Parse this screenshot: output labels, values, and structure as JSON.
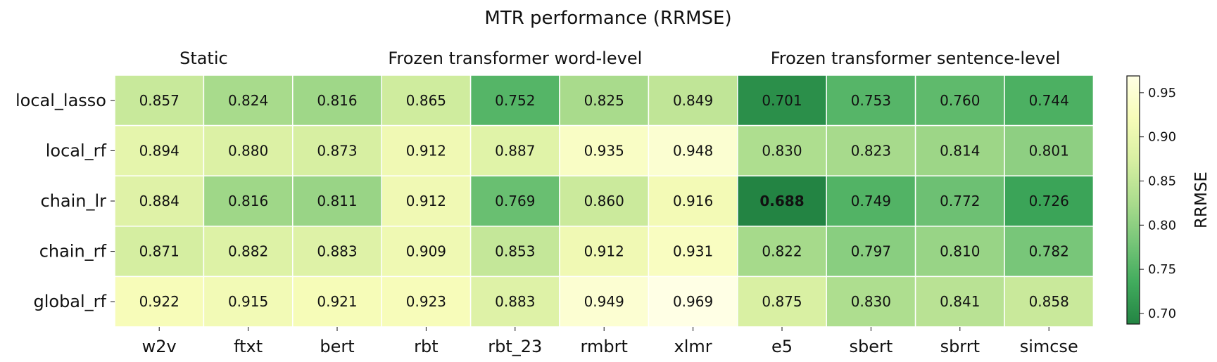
{
  "chart_data": {
    "type": "heatmap",
    "title": "MTR performance (RRMSE)",
    "column_groups": [
      {
        "label": "Static",
        "columns": [
          "w2v",
          "ftxt"
        ]
      },
      {
        "label": "Frozen transformer word-level",
        "columns": [
          "bert",
          "rbt",
          "rbt_23",
          "rmbrt",
          "xlmr"
        ]
      },
      {
        "label": "Frozen transformer sentence-level",
        "columns": [
          "e5",
          "sbert",
          "sbrrt",
          "simcse"
        ]
      }
    ],
    "columns": [
      "w2v",
      "ftxt",
      "bert",
      "rbt",
      "rbt_23",
      "rmbrt",
      "xlmr",
      "e5",
      "sbert",
      "sbrrt",
      "simcse"
    ],
    "rows": [
      "local_lasso",
      "local_rf",
      "chain_lr",
      "chain_rf",
      "global_rf"
    ],
    "values": [
      [
        0.857,
        0.824,
        0.816,
        0.865,
        0.752,
        0.825,
        0.849,
        0.701,
        0.753,
        0.76,
        0.744
      ],
      [
        0.894,
        0.88,
        0.873,
        0.912,
        0.887,
        0.935,
        0.948,
        0.83,
        0.823,
        0.814,
        0.801
      ],
      [
        0.884,
        0.816,
        0.811,
        0.912,
        0.769,
        0.86,
        0.916,
        0.688,
        0.749,
        0.772,
        0.726
      ],
      [
        0.871,
        0.882,
        0.883,
        0.909,
        0.853,
        0.912,
        0.931,
        0.822,
        0.797,
        0.81,
        0.782
      ],
      [
        0.922,
        0.915,
        0.921,
        0.923,
        0.883,
        0.949,
        0.969,
        0.875,
        0.83,
        0.841,
        0.858
      ]
    ],
    "best_cell": {
      "row": 2,
      "col": 7
    },
    "colorbar": {
      "label": "RRMSE",
      "range": [
        0.688,
        0.969
      ],
      "ticks": [
        0.7,
        0.75,
        0.8,
        0.85,
        0.9,
        0.95
      ],
      "colormap": [
        "#ffffe5",
        "#f7fcb9",
        "#d9f0a3",
        "#addd8e",
        "#78c679",
        "#41ab5d",
        "#238443"
      ]
    }
  }
}
